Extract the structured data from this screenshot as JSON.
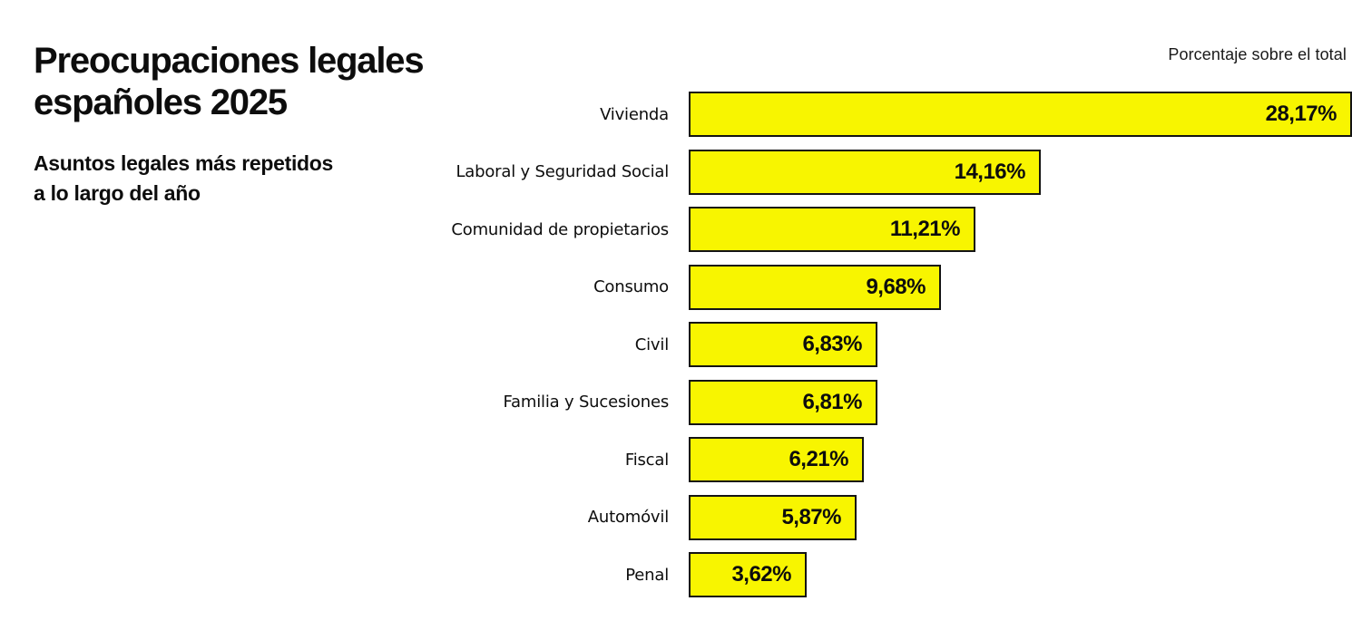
{
  "header": {
    "title_line1": "Preocupaciones legales",
    "title_line2": "españoles 2025",
    "subtitle_line1": "Asuntos legales más repetidos",
    "subtitle_line2": "a lo largo del año",
    "axis_note": "Porcentaje sobre el total"
  },
  "colors": {
    "bar_fill": "#F8F500",
    "bar_border": "#141414",
    "text": "#0D0D0D",
    "bg": "#FFFFFF"
  },
  "chart_data": {
    "type": "bar",
    "orientation": "horizontal",
    "title": "Preocupaciones legales españoles 2025",
    "subtitle": "Asuntos legales más repetidos a lo largo del año",
    "note": "Porcentaje sobre el total",
    "categories": [
      "Vivienda",
      "Laboral y Seguridad Social",
      "Comunidad de propietarios",
      "Consumo",
      "Civil",
      "Familia y Sucesiones",
      "Fiscal",
      "Automóvil",
      "Penal"
    ],
    "values": [
      28.17,
      14.16,
      11.21,
      9.68,
      6.83,
      6.81,
      6.21,
      5.87,
      3.62
    ],
    "value_labels": [
      "28,17%",
      "14,16%",
      "11,21%",
      "9,68%",
      "6,83%",
      "6,81%",
      "6,21%",
      "5,87%",
      "3,62%"
    ],
    "unit": "%",
    "xlim": [
      0,
      30
    ],
    "grid": false,
    "legend": false,
    "value_label_position": "inside-right",
    "sort": "descending"
  }
}
